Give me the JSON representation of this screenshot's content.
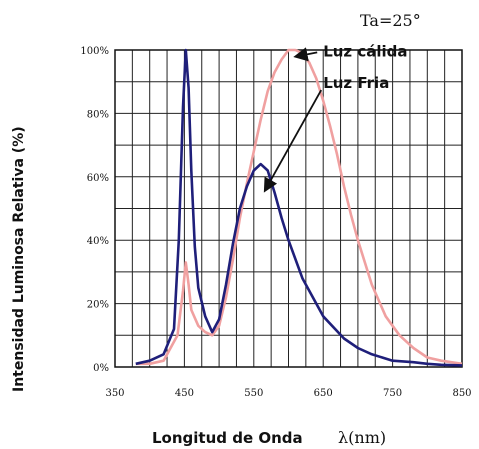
{
  "chart_data": {
    "type": "line",
    "annotation": "Ta=25°",
    "xlabel": "Longitud de Onda",
    "xunit": "λ(nm)",
    "ylabel": "Intensidad Luminosa Relativa (%)",
    "xlim": [
      350,
      850
    ],
    "ylim": [
      0,
      100
    ],
    "x_ticks": [
      "350",
      "450",
      "550",
      "650",
      "750",
      "850"
    ],
    "y_ticks": [
      "0%",
      "20%",
      "40%",
      "60%",
      "80%",
      "100%"
    ],
    "grid": true,
    "series": [
      {
        "name": "Luz Fria",
        "color": "#1f1f7a",
        "x": [
          380,
          400,
          420,
          435,
          442,
          448,
          452,
          456,
          460,
          465,
          470,
          480,
          490,
          500,
          510,
          520,
          530,
          540,
          550,
          560,
          570,
          580,
          590,
          600,
          620,
          650,
          680,
          700,
          720,
          750,
          780,
          800,
          820,
          850
        ],
        "y": [
          1,
          2,
          4,
          12,
          40,
          82,
          100,
          88,
          62,
          38,
          25,
          16,
          11,
          15,
          26,
          39,
          50,
          57,
          62,
          64,
          62,
          55,
          47,
          40,
          28,
          16,
          9,
          6,
          4,
          2,
          1.5,
          1,
          0.7,
          0.5
        ]
      },
      {
        "name": "Luz cálida",
        "color": "#f0a0a0",
        "x": [
          380,
          400,
          420,
          440,
          448,
          452,
          456,
          460,
          470,
          480,
          490,
          500,
          510,
          520,
          530,
          540,
          550,
          560,
          570,
          580,
          590,
          600,
          610,
          620,
          630,
          640,
          650,
          660,
          670,
          680,
          690,
          700,
          720,
          740,
          760,
          780,
          800,
          820,
          850
        ],
        "y": [
          1,
          1,
          2,
          10,
          24,
          33,
          26,
          18,
          13,
          11,
          10,
          13,
          22,
          34,
          47,
          58,
          68,
          78,
          87,
          93,
          97,
          100,
          100,
          99,
          96,
          91,
          84,
          76,
          67,
          57,
          48,
          40,
          26,
          16,
          10,
          6,
          3,
          2,
          1
        ]
      }
    ],
    "labels": [
      {
        "series_index": 1,
        "text": "Luz cálida",
        "arrow_to": [
          612,
          98
        ],
        "text_at": [
          650,
          98
        ]
      },
      {
        "series_index": 0,
        "text": "Luz Fria",
        "arrow_to": [
          567,
          56
        ],
        "text_at": [
          650,
          88
        ]
      }
    ]
  }
}
